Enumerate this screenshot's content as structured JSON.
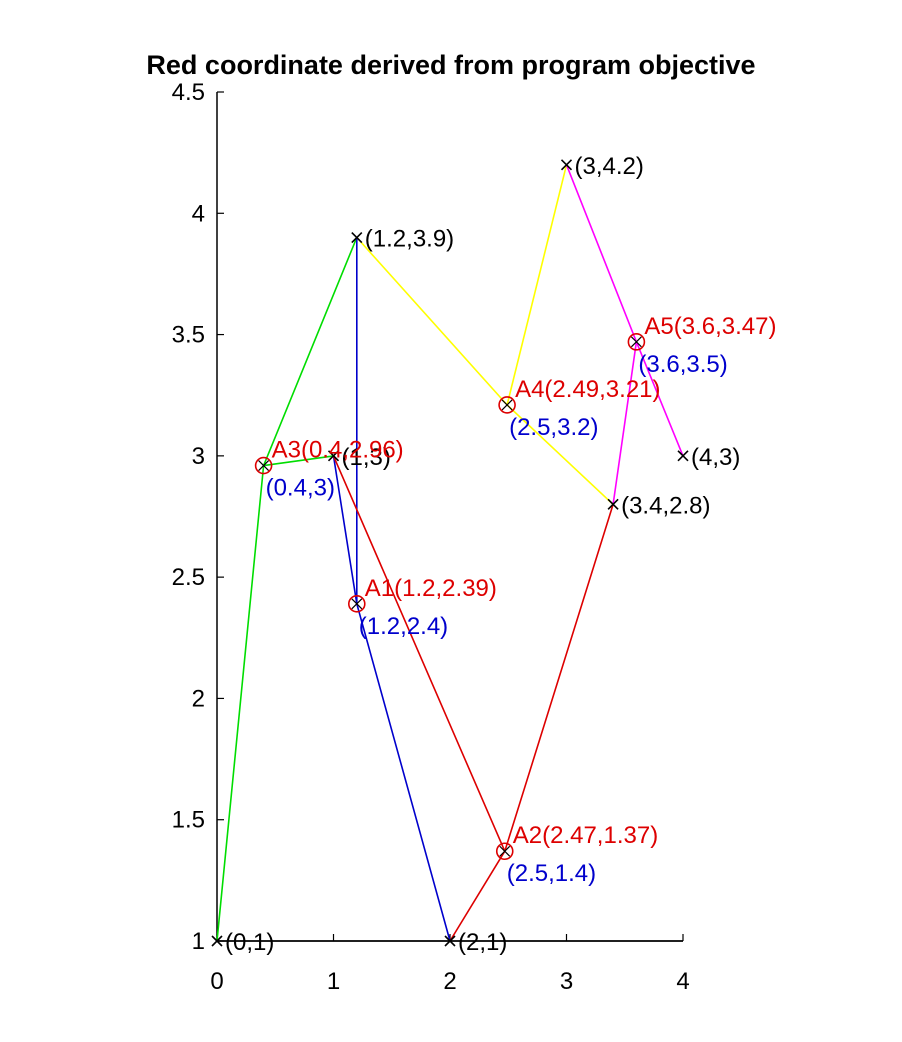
{
  "chart_data": {
    "type": "line",
    "title": "Red coordinate derived from program objective",
    "xlabel": "",
    "ylabel": "",
    "xlim": [
      0,
      4
    ],
    "ylim": [
      1,
      4.5
    ],
    "xticks": [
      "0",
      "1",
      "2",
      "3",
      "4"
    ],
    "yticks": [
      "1",
      "1.5",
      "2",
      "2.5",
      "3",
      "3.5",
      "4",
      "4.5"
    ],
    "grid": false,
    "colors": {
      "green": "#00dd00",
      "blue": "#0000cc",
      "red": "#dd0000",
      "yellow": "#ffff00",
      "magenta": "#ff00ff",
      "black": "#000000"
    },
    "known_points": [
      {
        "x": 0,
        "y": 1,
        "label": "(0,1)"
      },
      {
        "x": 2,
        "y": 1,
        "label": "(2,1)"
      },
      {
        "x": 1.2,
        "y": 3.9,
        "label": "(1.2,3.9)"
      },
      {
        "x": 1,
        "y": 3,
        "label": "(1,3)"
      },
      {
        "x": 3,
        "y": 4.2,
        "label": "(3,4.2)"
      },
      {
        "x": 4,
        "y": 3,
        "label": "(4,3)"
      },
      {
        "x": 3.4,
        "y": 2.8,
        "label": "(3.4,2.8)"
      }
    ],
    "derived_points": [
      {
        "name": "A1",
        "x": 1.2,
        "y": 2.39,
        "label": "A1(1.2,2.39)",
        "approx_label": "(1.2,2.4)"
      },
      {
        "name": "A2",
        "x": 2.47,
        "y": 1.37,
        "label": "A2(2.47,1.37)",
        "approx_label": "(2.5,1.4)"
      },
      {
        "name": "A3",
        "x": 0.4,
        "y": 2.96,
        "label": "A3(0.4,2.96)",
        "approx_label": "(0.4,3)"
      },
      {
        "name": "A4",
        "x": 2.49,
        "y": 3.21,
        "label": "A4(2.49,3.21)",
        "approx_label": "(2.5,3.2)"
      },
      {
        "name": "A5",
        "x": 3.6,
        "y": 3.47,
        "label": "A5(3.6,3.47)",
        "approx_label": "(3.6,3.5)"
      }
    ],
    "segments": [
      {
        "color": "green",
        "points": [
          [
            0,
            1
          ],
          [
            0.4,
            2.96
          ],
          [
            1.2,
            3.9
          ]
        ]
      },
      {
        "color": "green",
        "points": [
          [
            0.4,
            2.96
          ],
          [
            1,
            3
          ]
        ]
      },
      {
        "color": "blue",
        "points": [
          [
            1.2,
            3.9
          ],
          [
            1.2,
            2.39
          ],
          [
            2,
            1
          ]
        ]
      },
      {
        "color": "blue",
        "points": [
          [
            1,
            3
          ],
          [
            1.2,
            2.39
          ]
        ]
      },
      {
        "color": "red",
        "points": [
          [
            1,
            3
          ],
          [
            2.47,
            1.37
          ],
          [
            3.4,
            2.8
          ]
        ]
      },
      {
        "color": "red",
        "points": [
          [
            2,
            1
          ],
          [
            2.47,
            1.37
          ]
        ]
      },
      {
        "color": "yellow",
        "points": [
          [
            1.2,
            3.9
          ],
          [
            2.49,
            3.21
          ],
          [
            3.4,
            2.8
          ]
        ]
      },
      {
        "color": "yellow",
        "points": [
          [
            2.49,
            3.21
          ],
          [
            3,
            4.2
          ]
        ]
      },
      {
        "color": "magenta",
        "points": [
          [
            3,
            4.2
          ],
          [
            3.6,
            3.47
          ],
          [
            4,
            3
          ]
        ]
      },
      {
        "color": "magenta",
        "points": [
          [
            3.4,
            2.8
          ],
          [
            3.6,
            3.47
          ]
        ]
      },
      {
        "color": "black",
        "points": [
          [
            0,
            1
          ],
          [
            4,
            1
          ]
        ]
      }
    ]
  }
}
